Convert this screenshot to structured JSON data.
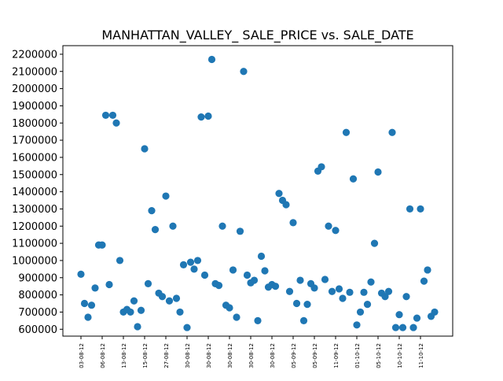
{
  "chart_data": {
    "type": "scatter",
    "title": "MANHATTAN_VALLEY_ SALE_PRICE vs. SALE_DATE",
    "xlabel": "",
    "ylabel": "",
    "ylim": [
      560000,
      2250000
    ],
    "grid": false,
    "y_ticks": [
      600000,
      700000,
      800000,
      900000,
      1000000,
      1100000,
      1200000,
      1300000,
      1400000,
      1500000,
      1600000,
      1700000,
      1800000,
      1900000,
      2000000,
      2100000,
      2200000
    ],
    "x_tick_labels": [
      "03-08-12",
      "06-08-12",
      "13-08-12",
      "15-08-12",
      "27-08-12",
      "30-08-12",
      "30-08-12",
      "30-08-12",
      "30-08-12",
      "30-08-12",
      "05-09-12",
      "05-09-12",
      "11-09-12",
      "01-10-12",
      "05-10-12",
      "10-10-12",
      "11-10-12"
    ],
    "point_color": "#1f77b4",
    "series": [
      {
        "values": [
          {
            "x": 0.0,
            "y": 920000
          },
          {
            "x": 0.2,
            "y": 750000
          },
          {
            "x": 0.4,
            "y": 670000
          },
          {
            "x": 0.6,
            "y": 740000
          },
          {
            "x": 0.8,
            "y": 840000
          },
          {
            "x": 1.0,
            "y": 1090000
          },
          {
            "x": 1.2,
            "y": 1090000
          },
          {
            "x": 1.4,
            "y": 1845000
          },
          {
            "x": 1.6,
            "y": 860000
          },
          {
            "x": 1.8,
            "y": 1845000
          },
          {
            "x": 2.0,
            "y": 1800000
          },
          {
            "x": 2.2,
            "y": 1000000
          },
          {
            "x": 2.4,
            "y": 700000
          },
          {
            "x": 2.6,
            "y": 715000
          },
          {
            "x": 2.8,
            "y": 700000
          },
          {
            "x": 3.0,
            "y": 765000
          },
          {
            "x": 3.2,
            "y": 615000
          },
          {
            "x": 3.4,
            "y": 710000
          },
          {
            "x": 3.6,
            "y": 1650000
          },
          {
            "x": 3.8,
            "y": 865000
          },
          {
            "x": 4.0,
            "y": 1290000
          },
          {
            "x": 4.2,
            "y": 1180000
          },
          {
            "x": 4.4,
            "y": 810000
          },
          {
            "x": 4.6,
            "y": 790000
          },
          {
            "x": 4.8,
            "y": 1375000
          },
          {
            "x": 5.0,
            "y": 765000
          },
          {
            "x": 5.2,
            "y": 1200000
          },
          {
            "x": 5.4,
            "y": 780000
          },
          {
            "x": 5.6,
            "y": 700000
          },
          {
            "x": 5.8,
            "y": 975000
          },
          {
            "x": 6.0,
            "y": 610000
          },
          {
            "x": 6.2,
            "y": 990000
          },
          {
            "x": 6.4,
            "y": 950000
          },
          {
            "x": 6.6,
            "y": 1000000
          },
          {
            "x": 6.8,
            "y": 1835000
          },
          {
            "x": 7.0,
            "y": 915000
          },
          {
            "x": 7.2,
            "y": 1840000
          },
          {
            "x": 7.4,
            "y": 2170000
          },
          {
            "x": 7.6,
            "y": 865000
          },
          {
            "x": 7.8,
            "y": 855000
          },
          {
            "x": 8.0,
            "y": 1200000
          },
          {
            "x": 8.2,
            "y": 740000
          },
          {
            "x": 8.4,
            "y": 725000
          },
          {
            "x": 8.6,
            "y": 945000
          },
          {
            "x": 8.8,
            "y": 670000
          },
          {
            "x": 9.0,
            "y": 1170000
          },
          {
            "x": 9.2,
            "y": 2100000
          },
          {
            "x": 9.4,
            "y": 915000
          },
          {
            "x": 9.6,
            "y": 870000
          },
          {
            "x": 9.8,
            "y": 885000
          },
          {
            "x": 10.0,
            "y": 650000
          },
          {
            "x": 10.2,
            "y": 1025000
          },
          {
            "x": 10.4,
            "y": 940000
          },
          {
            "x": 10.6,
            "y": 845000
          },
          {
            "x": 10.8,
            "y": 860000
          },
          {
            "x": 11.0,
            "y": 850000
          },
          {
            "x": 11.2,
            "y": 1390000
          },
          {
            "x": 11.4,
            "y": 1350000
          },
          {
            "x": 11.6,
            "y": 1325000
          },
          {
            "x": 11.8,
            "y": 820000
          },
          {
            "x": 12.0,
            "y": 1220000
          },
          {
            "x": 12.2,
            "y": 750000
          },
          {
            "x": 12.4,
            "y": 885000
          },
          {
            "x": 12.6,
            "y": 650000
          },
          {
            "x": 12.8,
            "y": 745000
          },
          {
            "x": 13.0,
            "y": 865000
          },
          {
            "x": 13.2,
            "y": 840000
          },
          {
            "x": 13.4,
            "y": 1520000
          },
          {
            "x": 13.6,
            "y": 1545000
          },
          {
            "x": 13.8,
            "y": 890000
          },
          {
            "x": 14.0,
            "y": 1200000
          },
          {
            "x": 14.2,
            "y": 820000
          },
          {
            "x": 14.4,
            "y": 1175000
          },
          {
            "x": 14.6,
            "y": 835000
          },
          {
            "x": 14.8,
            "y": 780000
          },
          {
            "x": 15.0,
            "y": 1745000
          },
          {
            "x": 15.2,
            "y": 815000
          },
          {
            "x": 15.4,
            "y": 1475000
          },
          {
            "x": 15.6,
            "y": 625000
          },
          {
            "x": 15.8,
            "y": 700000
          },
          {
            "x": 16.0,
            "y": 815000
          },
          {
            "x": 16.2,
            "y": 745000
          },
          {
            "x": 16.4,
            "y": 875000
          },
          {
            "x": 16.6,
            "y": 1100000
          },
          {
            "x": 16.8,
            "y": 1515000
          },
          {
            "x": 17.0,
            "y": 810000
          },
          {
            "x": 17.2,
            "y": 790000
          },
          {
            "x": 17.4,
            "y": 820000
          },
          {
            "x": 17.6,
            "y": 1745000
          },
          {
            "x": 17.8,
            "y": 610000
          },
          {
            "x": 18.0,
            "y": 685000
          },
          {
            "x": 18.2,
            "y": 610000
          },
          {
            "x": 18.4,
            "y": 790000
          },
          {
            "x": 18.6,
            "y": 1300000
          },
          {
            "x": 18.8,
            "y": 610000
          },
          {
            "x": 19.0,
            "y": 665000
          },
          {
            "x": 19.2,
            "y": 1300000
          },
          {
            "x": 19.4,
            "y": 880000
          },
          {
            "x": 19.6,
            "y": 945000
          },
          {
            "x": 19.8,
            "y": 675000
          },
          {
            "x": 20.0,
            "y": 700000
          }
        ]
      }
    ]
  }
}
